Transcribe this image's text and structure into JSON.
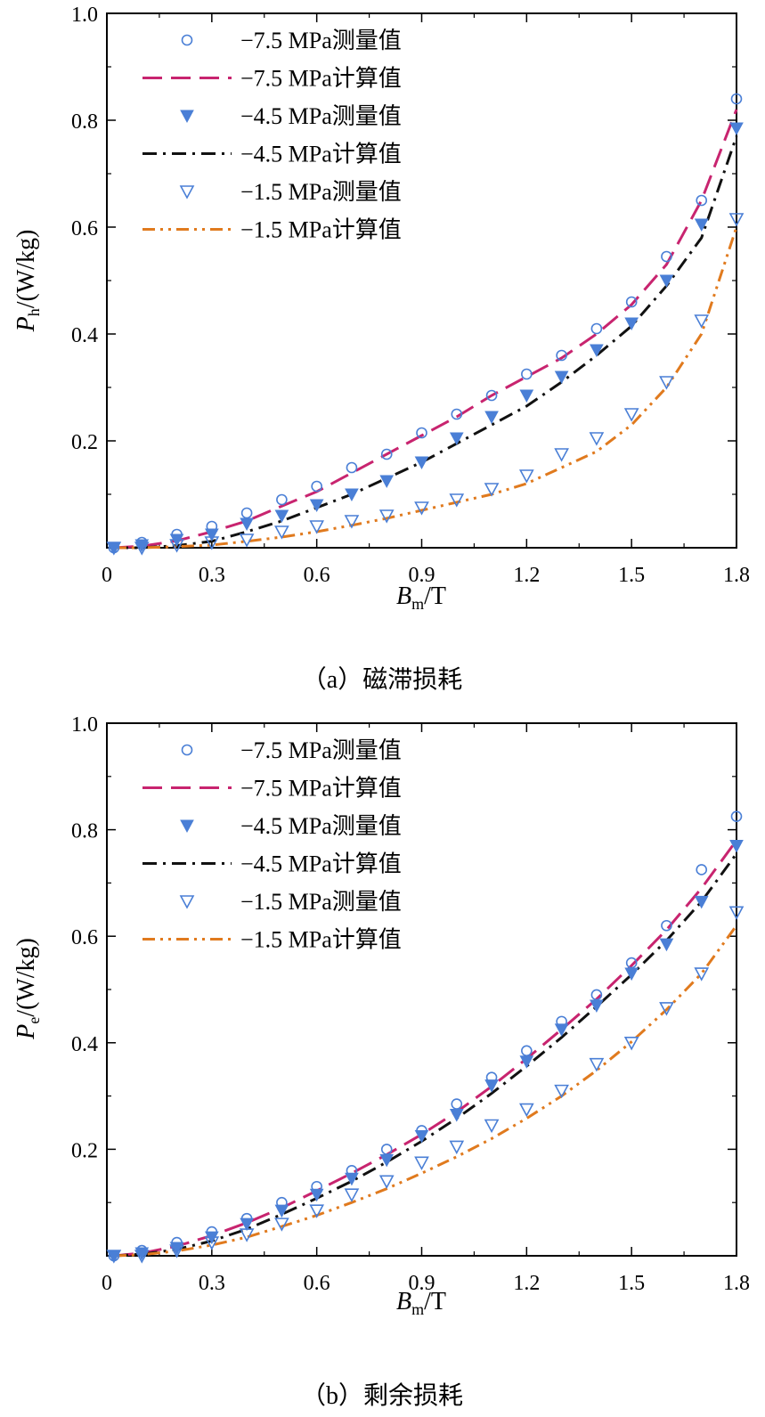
{
  "chart_data": [
    {
      "type": "line",
      "caption": "（a）磁滞损耗",
      "xlabel": {
        "main": "B",
        "sub": "m",
        "rest": "/T"
      },
      "ylabel": {
        "main": "P",
        "sub": "h",
        "rest": "/(W/kg)"
      },
      "xlim": [
        0,
        1.8
      ],
      "ylim": [
        0,
        1.0
      ],
      "xticks": [
        "0",
        "0.3",
        "0.6",
        "0.9",
        "1.2",
        "1.5",
        "1.8"
      ],
      "xtick_values": [
        0,
        0.3,
        0.6,
        0.9,
        1.2,
        1.5,
        1.8
      ],
      "yticks": [
        "0.2",
        "0.4",
        "0.6",
        "0.8",
        "1.0"
      ],
      "ytick_values": [
        0.2,
        0.4,
        0.6,
        0.8,
        1.0
      ],
      "legend_position": "top-left",
      "x": [
        0.02,
        0.1,
        0.2,
        0.3,
        0.4,
        0.5,
        0.6,
        0.7,
        0.8,
        0.9,
        1.0,
        1.1,
        1.2,
        1.3,
        1.4,
        1.5,
        1.6,
        1.7,
        1.8
      ],
      "series": [
        {
          "name": "−7.5 MPa测量值",
          "kind": "marker",
          "marker": "circle",
          "color": "#4a7fd6",
          "values": [
            0.0,
            0.01,
            0.025,
            0.04,
            0.065,
            0.09,
            0.115,
            0.15,
            0.175,
            0.215,
            0.25,
            0.285,
            0.325,
            0.36,
            0.41,
            0.46,
            0.545,
            0.65,
            0.84
          ]
        },
        {
          "name": "−7.5 MPa计算值",
          "kind": "line",
          "dash": "22,10",
          "color": "#c8246f",
          "values": [
            0.0,
            0.003,
            0.013,
            0.03,
            0.05,
            0.078,
            0.105,
            0.14,
            0.175,
            0.21,
            0.245,
            0.285,
            0.32,
            0.355,
            0.4,
            0.455,
            0.53,
            0.65,
            0.82
          ]
        },
        {
          "name": "−4.5 MPa测量值",
          "kind": "marker",
          "marker": "triangle-filled",
          "color": "#4a7fd6",
          "values": [
            0.0,
            0.005,
            0.015,
            0.025,
            0.045,
            0.06,
            0.08,
            0.1,
            0.125,
            0.16,
            0.205,
            0.245,
            0.285,
            0.32,
            0.37,
            0.42,
            0.5,
            0.605,
            0.785
          ]
        },
        {
          "name": "−4.5 MPa计算值",
          "kind": "line",
          "dash": "16,7,3,7",
          "color": "#111111",
          "values": [
            0.0,
            0.0,
            0.004,
            0.012,
            0.03,
            0.05,
            0.075,
            0.1,
            0.13,
            0.16,
            0.195,
            0.23,
            0.265,
            0.31,
            0.36,
            0.415,
            0.49,
            0.58,
            0.77
          ]
        },
        {
          "name": "−1.5 MPa测量值",
          "kind": "marker",
          "marker": "triangle-open",
          "color": "#4a7fd6",
          "values": [
            0.0,
            0.0,
            0.005,
            0.01,
            0.015,
            0.03,
            0.04,
            0.05,
            0.06,
            0.075,
            0.09,
            0.11,
            0.135,
            0.175,
            0.205,
            0.25,
            0.31,
            0.425,
            0.615
          ]
        },
        {
          "name": "−1.5 MPa计算值",
          "kind": "line",
          "dash": "14,6,3,6,3,6",
          "color": "#e07a1e",
          "values": [
            0.0,
            0.0,
            0.002,
            0.005,
            0.012,
            0.02,
            0.03,
            0.042,
            0.055,
            0.07,
            0.085,
            0.1,
            0.12,
            0.15,
            0.18,
            0.23,
            0.3,
            0.4,
            0.6
          ]
        }
      ]
    },
    {
      "type": "line",
      "caption": "（b）剩余损耗",
      "xlabel": {
        "main": "B",
        "sub": "m",
        "rest": "/T"
      },
      "ylabel": {
        "main": "P",
        "sub": "e",
        "rest": "/(W/kg)"
      },
      "xlim": [
        0,
        1.8
      ],
      "ylim": [
        0,
        1.0
      ],
      "xticks": [
        "0",
        "0.3",
        "0.6",
        "0.9",
        "1.2",
        "1.5",
        "1.8"
      ],
      "xtick_values": [
        0,
        0.3,
        0.6,
        0.9,
        1.2,
        1.5,
        1.8
      ],
      "yticks": [
        "0.2",
        "0.4",
        "0.6",
        "0.8",
        "1.0"
      ],
      "ytick_values": [
        0.2,
        0.4,
        0.6,
        0.8,
        1.0
      ],
      "legend_position": "top-left",
      "x": [
        0.02,
        0.1,
        0.2,
        0.3,
        0.4,
        0.5,
        0.6,
        0.7,
        0.8,
        0.9,
        1.0,
        1.1,
        1.2,
        1.3,
        1.4,
        1.5,
        1.6,
        1.7,
        1.8
      ],
      "series": [
        {
          "name": "−7.5 MPa测量值",
          "kind": "marker",
          "marker": "circle",
          "color": "#4a7fd6",
          "values": [
            0.0,
            0.01,
            0.025,
            0.045,
            0.07,
            0.1,
            0.13,
            0.16,
            0.2,
            0.235,
            0.285,
            0.335,
            0.385,
            0.44,
            0.49,
            0.55,
            0.62,
            0.725,
            0.825
          ]
        },
        {
          "name": "−7.5 MPa计算值",
          "kind": "line",
          "dash": "22,10",
          "color": "#c8246f",
          "values": [
            0.0,
            0.005,
            0.018,
            0.038,
            0.062,
            0.09,
            0.122,
            0.155,
            0.19,
            0.228,
            0.27,
            0.318,
            0.37,
            0.425,
            0.482,
            0.545,
            0.612,
            0.69,
            0.78
          ]
        },
        {
          "name": "−4.5 MPa测量值",
          "kind": "marker",
          "marker": "triangle-filled",
          "color": "#4a7fd6",
          "values": [
            0.0,
            0.005,
            0.015,
            0.035,
            0.06,
            0.085,
            0.115,
            0.145,
            0.18,
            0.225,
            0.265,
            0.32,
            0.365,
            0.425,
            0.47,
            0.53,
            0.585,
            0.665,
            0.77
          ]
        },
        {
          "name": "−4.5 MPa计算值",
          "kind": "line",
          "dash": "16,7,3,7",
          "color": "#111111",
          "values": [
            0.0,
            0.003,
            0.012,
            0.028,
            0.05,
            0.078,
            0.108,
            0.14,
            0.176,
            0.215,
            0.258,
            0.305,
            0.356,
            0.41,
            0.468,
            0.528,
            0.592,
            0.665,
            0.755
          ]
        },
        {
          "name": "−1.5 MPa测量值",
          "kind": "marker",
          "marker": "triangle-open",
          "color": "#4a7fd6",
          "values": [
            0.0,
            0.0,
            0.01,
            0.025,
            0.04,
            0.06,
            0.085,
            0.115,
            0.14,
            0.175,
            0.205,
            0.245,
            0.275,
            0.31,
            0.36,
            0.4,
            0.465,
            0.53,
            0.645
          ]
        },
        {
          "name": "−1.5 MPa计算值",
          "kind": "line",
          "dash": "14,6,3,6,3,6",
          "color": "#e07a1e",
          "values": [
            0.0,
            0.002,
            0.009,
            0.02,
            0.035,
            0.055,
            0.076,
            0.1,
            0.126,
            0.155,
            0.186,
            0.22,
            0.258,
            0.3,
            0.348,
            0.402,
            0.462,
            0.53,
            0.62
          ]
        }
      ]
    }
  ]
}
